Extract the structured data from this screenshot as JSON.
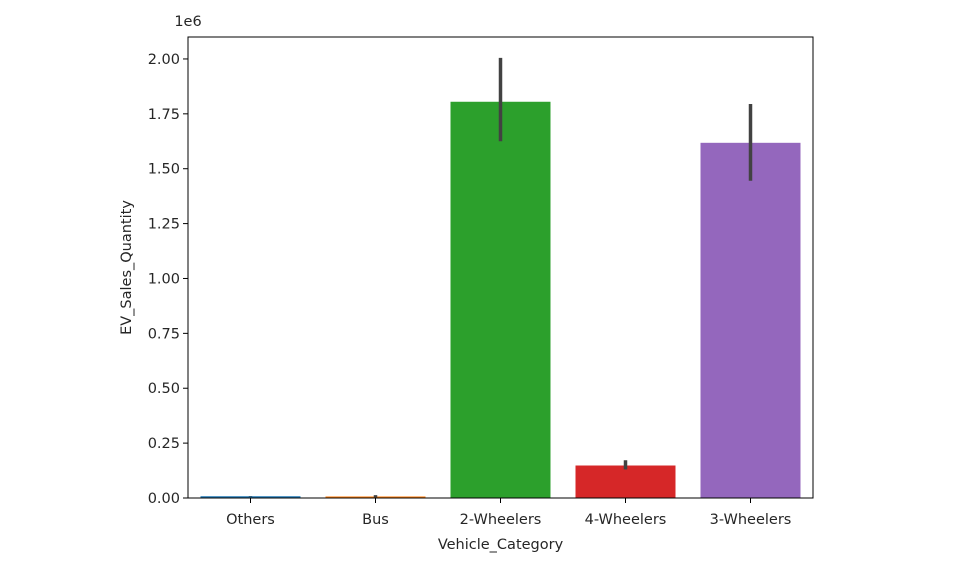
{
  "chart_data": {
    "type": "bar",
    "categories": [
      "Others",
      "Bus",
      "2-Wheelers",
      "4-Wheelers",
      "3-Wheelers"
    ],
    "values": [
      8000,
      7000,
      1805000,
      148000,
      1618000
    ],
    "error_bars": [
      [
        7000,
        9000
      ],
      [
        3000,
        13000
      ],
      [
        1625000,
        2005000
      ],
      [
        130000,
        172000
      ],
      [
        1445000,
        1795000
      ]
    ],
    "colors": [
      "#1f77b4",
      "#ff7f0e",
      "#2ca02c",
      "#d62728",
      "#9467bd"
    ],
    "xlabel": "Vehicle_Category",
    "ylabel": "EV_Sales_Quantity",
    "ylim": [
      0,
      2100000
    ],
    "yticks": [
      0,
      250000,
      500000,
      750000,
      1000000,
      1250000,
      1500000,
      1750000,
      2000000
    ],
    "ytick_labels": [
      "0.00",
      "0.25",
      "0.50",
      "0.75",
      "1.00",
      "1.25",
      "1.50",
      "1.75",
      "2.00"
    ],
    "y_offset_label": "1e6",
    "grid": false
  }
}
